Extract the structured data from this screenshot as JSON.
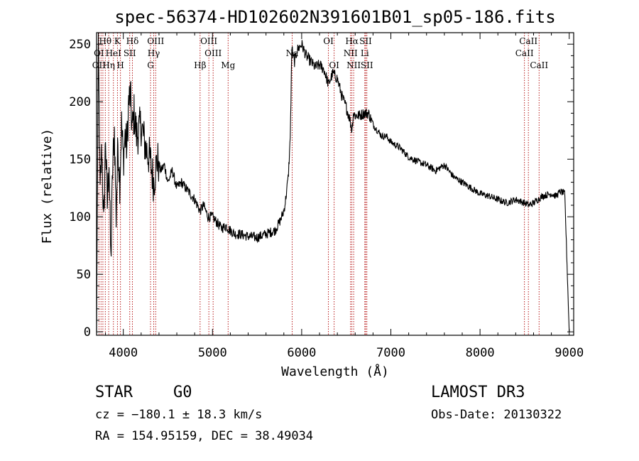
{
  "chart_data": {
    "type": "line",
    "title": "spec-56374-HD102602N391601B01_sp05-186.fits",
    "xlabel": "Wavelength (Å)",
    "ylabel": "Flux (relative)",
    "xlim": [
      3700,
      9050
    ],
    "ylim": [
      -3,
      260
    ],
    "x_ticks": [
      4000,
      5000,
      6000,
      7000,
      8000,
      9000
    ],
    "y_ticks": [
      0,
      50,
      100,
      150,
      200,
      250
    ],
    "x_tick_labels": [
      "4000",
      "5000",
      "6000",
      "7000",
      "8000",
      "9000"
    ],
    "y_tick_labels": [
      "0",
      "50",
      "100",
      "150",
      "200",
      "250"
    ],
    "series": [
      {
        "name": "flux",
        "x": [
          3700,
          3720,
          3740,
          3760,
          3780,
          3800,
          3820,
          3840,
          3860,
          3880,
          3900,
          3920,
          3940,
          3960,
          3980,
          4000,
          4020,
          4040,
          4060,
          4080,
          4100,
          4120,
          4150,
          4200,
          4250,
          4300,
          4340,
          4380,
          4420,
          4460,
          4500,
          4550,
          4600,
          4650,
          4700,
          4750,
          4800,
          4860,
          4900,
          4950,
          5000,
          5050,
          5100,
          5150,
          5200,
          5250,
          5300,
          5400,
          5500,
          5600,
          5700,
          5750,
          5800,
          5820,
          5850,
          5870,
          5880,
          5890,
          5900,
          5920,
          5950,
          6000,
          6050,
          6100,
          6150,
          6200,
          6250,
          6300,
          6350,
          6400,
          6450,
          6500,
          6540,
          6563,
          6580,
          6600,
          6650,
          6700,
          6750,
          6800,
          6850,
          6900,
          6950,
          7000,
          7100,
          7200,
          7300,
          7400,
          7500,
          7600,
          7700,
          7800,
          7900,
          8000,
          8100,
          8200,
          8300,
          8400,
          8500,
          8550,
          8600,
          8650,
          8700,
          8800,
          8850,
          8900,
          8950,
          9000
        ],
        "y": [
          0,
          250,
          120,
          160,
          90,
          170,
          110,
          150,
          60,
          140,
          175,
          100,
          165,
          130,
          180,
          150,
          170,
          160,
          200,
          205,
          175,
          190,
          170,
          180,
          160,
          150,
          130,
          150,
          140,
          145,
          130,
          140,
          125,
          130,
          125,
          120,
          115,
          105,
          110,
          100,
          100,
          95,
          90,
          92,
          88,
          85,
          85,
          83,
          82,
          85,
          88,
          95,
          105,
          115,
          135,
          165,
          200,
          252,
          240,
          235,
          245,
          250,
          240,
          235,
          230,
          232,
          228,
          215,
          225,
          220,
          205,
          195,
          185,
          175,
          190,
          188,
          188,
          190,
          190,
          180,
          175,
          170,
          170,
          165,
          160,
          152,
          148,
          145,
          140,
          145,
          135,
          130,
          125,
          120,
          118,
          115,
          112,
          115,
          112,
          110,
          112,
          115,
          118,
          120,
          118,
          122,
          120,
          0
        ]
      }
    ],
    "lines_top": [
      {
        "label": "Hθ",
        "x": 3798
      },
      {
        "label": "K",
        "x": 3934
      },
      {
        "label": "Hδ",
        "x": 4102
      },
      {
        "label": "OIII",
        "x": 4363
      },
      {
        "label": "OIII",
        "x": 4959
      },
      {
        "label": "OI",
        "x": 6300
      },
      {
        "label": "Hα",
        "x": 6563
      },
      {
        "label": "SII",
        "x": 6717
      },
      {
        "label": "CaII",
        "x": 8542
      }
    ],
    "lines_mid": [
      {
        "label": "OI",
        "x": 3727
      },
      {
        "label": "HeI",
        "x": 3889
      },
      {
        "label": "SII",
        "x": 4072
      },
      {
        "label": "Hγ",
        "x": 4341
      },
      {
        "label": "OIII",
        "x": 5007
      },
      {
        "label": "Na",
        "x": 5893
      },
      {
        "label": "NII",
        "x": 6548
      },
      {
        "label": "Li",
        "x": 6708
      },
      {
        "label": "CaII",
        "x": 8498
      }
    ],
    "lines_low": [
      {
        "label": "OII",
        "x": 3727
      },
      {
        "label": "Hη",
        "x": 3836
      },
      {
        "label": "H",
        "x": 3968
      },
      {
        "label": "G",
        "x": 4305
      },
      {
        "label": "Hβ",
        "x": 4861
      },
      {
        "label": "Mg",
        "x": 5175
      },
      {
        "label": "OI",
        "x": 6364
      },
      {
        "label": "NII",
        "x": 6583
      },
      {
        "label": "SII",
        "x": 6731
      },
      {
        "label": "CaII",
        "x": 8662
      }
    ],
    "extra_lines": [
      3750,
      3771,
      3889,
      6563
    ]
  },
  "info": {
    "class": "STAR",
    "subclass": "G0",
    "survey": "LAMOST DR3",
    "cz": "cz = −180.1 ± 18.3 km/s",
    "obs_date": "Obs-Date: 20130322",
    "coords": "RA = 154.95159, DEC =  38.49034"
  }
}
